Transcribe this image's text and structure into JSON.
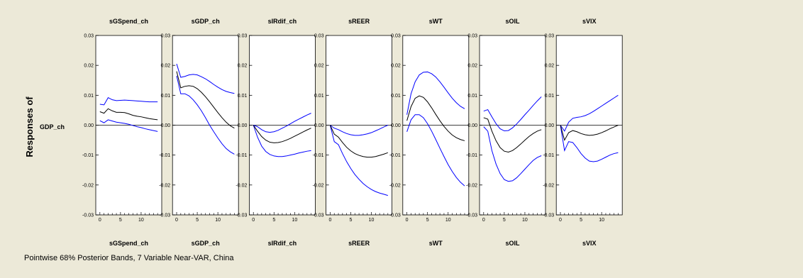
{
  "chart_data": {
    "type": "line",
    "ylabel": "Responses of",
    "row_label": "GDP_ch",
    "footnote": "Pointwise 68% Posterior Bands, 7 Variable Near-VAR, China",
    "ylim": [
      -0.03,
      0.03
    ],
    "yticks": [
      "0.03",
      "0.02",
      "0.01",
      "0.00",
      "-0.01",
      "-0.02",
      "-0.03"
    ],
    "xlim": [
      -1,
      15
    ],
    "xticks": [
      "0",
      "5",
      "10"
    ],
    "grid": false,
    "colors": {
      "median": "#000000",
      "band": "#0000ff",
      "zero": "#000000"
    },
    "x": [
      0,
      1,
      2,
      3,
      4,
      5,
      6,
      7,
      8,
      9,
      10,
      11,
      12,
      13,
      14
    ],
    "panels": [
      {
        "title": "sGSpend_ch",
        "median": [
          0.0045,
          0.004,
          0.0055,
          0.0048,
          0.0043,
          0.0043,
          0.0042,
          0.0038,
          0.0033,
          0.003,
          0.0028,
          0.0025,
          0.0022,
          0.002,
          0.0018
        ],
        "upper": [
          0.007,
          0.0068,
          0.0092,
          0.0085,
          0.0082,
          0.0083,
          0.0084,
          0.0083,
          0.0082,
          0.0081,
          0.008,
          0.0079,
          0.0078,
          0.0078,
          0.0078
        ],
        "lower": [
          0.0015,
          0.0008,
          0.0018,
          0.0014,
          0.001,
          0.0008,
          0.0006,
          0.0003,
          -0.0001,
          -0.0005,
          -0.0008,
          -0.0012,
          -0.0015,
          -0.0018,
          -0.0021
        ]
      },
      {
        "title": "sGDP_ch",
        "median": [
          0.018,
          0.0125,
          0.013,
          0.0132,
          0.013,
          0.0122,
          0.011,
          0.0095,
          0.0078,
          0.006,
          0.0042,
          0.0025,
          0.001,
          -0.0002,
          -0.001
        ],
        "upper": [
          0.0205,
          0.016,
          0.0163,
          0.0168,
          0.017,
          0.0168,
          0.0162,
          0.0155,
          0.0146,
          0.0136,
          0.0127,
          0.0119,
          0.0113,
          0.0109,
          0.0106
        ],
        "lower": [
          0.0165,
          0.0105,
          0.0105,
          0.0098,
          0.0085,
          0.0068,
          0.0048,
          0.0025,
          0.0,
          -0.0022,
          -0.0043,
          -0.0062,
          -0.0078,
          -0.0089,
          -0.0097
        ]
      },
      {
        "title": "sIRdif_ch",
        "median": [
          0.0,
          -0.002,
          -0.0038,
          -0.005,
          -0.0057,
          -0.0059,
          -0.0058,
          -0.0055,
          -0.005,
          -0.0044,
          -0.0037,
          -0.003,
          -0.0023,
          -0.0016,
          -0.001
        ],
        "upper": [
          0.0,
          -0.0005,
          -0.0015,
          -0.0022,
          -0.0024,
          -0.0022,
          -0.0017,
          -0.001,
          -0.0003,
          0.0005,
          0.0013,
          0.002,
          0.0027,
          0.0034,
          0.004
        ],
        "lower": [
          0.0,
          -0.004,
          -0.007,
          -0.0088,
          -0.0098,
          -0.0103,
          -0.0105,
          -0.0105,
          -0.0103,
          -0.01,
          -0.0097,
          -0.0093,
          -0.009,
          -0.0087,
          -0.0085
        ]
      },
      {
        "title": "sREER",
        "median": [
          0.0,
          -0.003,
          -0.004,
          -0.0058,
          -0.0074,
          -0.0086,
          -0.0095,
          -0.0101,
          -0.0105,
          -0.0107,
          -0.0107,
          -0.0105,
          -0.0101,
          -0.0097,
          -0.0092
        ],
        "upper": [
          0.0,
          -0.001,
          -0.0015,
          -0.0022,
          -0.0028,
          -0.0032,
          -0.0034,
          -0.0034,
          -0.0032,
          -0.0029,
          -0.0025,
          -0.0019,
          -0.0013,
          -0.0006,
          0.0
        ],
        "lower": [
          0.0,
          -0.0055,
          -0.0065,
          -0.0095,
          -0.0122,
          -0.0145,
          -0.0165,
          -0.0181,
          -0.0195,
          -0.0206,
          -0.0215,
          -0.0222,
          -0.0227,
          -0.0231,
          -0.0235
        ]
      },
      {
        "title": "sWT",
        "median": [
          0.0015,
          0.0062,
          0.009,
          0.0098,
          0.0093,
          0.0078,
          0.0058,
          0.0036,
          0.0015,
          -0.0004,
          -0.002,
          -0.0033,
          -0.0042,
          -0.0048,
          -0.0052
        ],
        "upper": [
          0.0035,
          0.0105,
          0.0145,
          0.0168,
          0.0177,
          0.0178,
          0.0172,
          0.0161,
          0.0145,
          0.0127,
          0.0108,
          0.009,
          0.0075,
          0.0063,
          0.0055
        ],
        "lower": [
          -0.0022,
          0.0018,
          0.0035,
          0.0035,
          0.0025,
          0.0005,
          -0.002,
          -0.0048,
          -0.0077,
          -0.0105,
          -0.0132,
          -0.0155,
          -0.0175,
          -0.0191,
          -0.0203
        ]
      },
      {
        "title": "sOIL",
        "median": [
          0.0025,
          0.002,
          -0.002,
          -0.0052,
          -0.0075,
          -0.0087,
          -0.009,
          -0.0085,
          -0.0075,
          -0.0063,
          -0.005,
          -0.0038,
          -0.0028,
          -0.002,
          -0.0015
        ],
        "upper": [
          0.0047,
          0.0052,
          0.0028,
          0.0005,
          -0.0012,
          -0.0019,
          -0.0018,
          -0.0009,
          0.0004,
          0.0019,
          0.0035,
          0.005,
          0.0066,
          0.0081,
          0.0095
        ],
        "lower": [
          -0.0005,
          -0.002,
          -0.0085,
          -0.013,
          -0.0162,
          -0.0182,
          -0.0188,
          -0.0186,
          -0.0176,
          -0.0162,
          -0.0147,
          -0.0132,
          -0.0118,
          -0.0108,
          -0.0102
        ]
      },
      {
        "title": "sVIX",
        "median": [
          0.0,
          -0.005,
          -0.0025,
          -0.0018,
          -0.0022,
          -0.0028,
          -0.0032,
          -0.0034,
          -0.0033,
          -0.003,
          -0.0025,
          -0.0019,
          -0.0012,
          -0.0006,
          0.0
        ],
        "upper": [
          0.0,
          -0.002,
          0.001,
          0.0023,
          0.0026,
          0.0028,
          0.0032,
          0.0038,
          0.0046,
          0.0055,
          0.0064,
          0.0073,
          0.0082,
          0.0091,
          0.01
        ],
        "lower": [
          0.0,
          -0.0085,
          -0.0055,
          -0.0058,
          -0.0075,
          -0.0095,
          -0.011,
          -0.012,
          -0.0122,
          -0.012,
          -0.0114,
          -0.0107,
          -0.01,
          -0.0095,
          -0.0092
        ]
      }
    ]
  }
}
